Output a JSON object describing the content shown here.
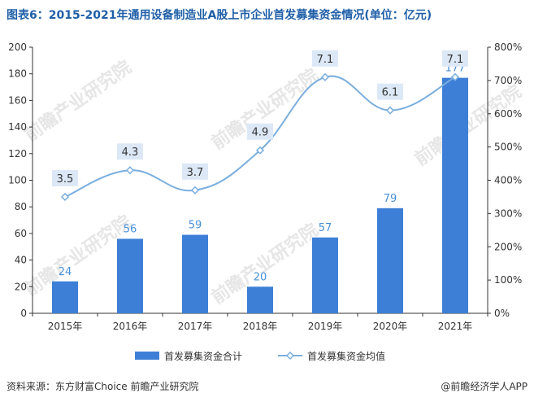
{
  "title": "图表6：2015-2021年通用设备制造业A股上市企业首发募集资金情况(单位：亿元)",
  "source": "资料来源：东方财富Choice 前瞻产业研究院",
  "brand": "@前瞻经济学人APP",
  "watermark": "前瞻产业研究院",
  "colors": {
    "bar": "#3d7fd6",
    "line": "#7aaede",
    "label": "#4a8fd8",
    "title": "#1f5fa8"
  },
  "chart_data": {
    "type": "bar",
    "categories": [
      "2015年",
      "2016年",
      "2017年",
      "2018年",
      "2019年",
      "2020年",
      "2021年"
    ],
    "series": [
      {
        "name": "首发募集资金合计",
        "type": "bar",
        "axis": "left",
        "values": [
          24,
          56,
          59,
          20,
          57,
          79,
          177
        ]
      },
      {
        "name": "首发募集资金均值",
        "type": "line",
        "axis": "right",
        "values": [
          3.5,
          4.3,
          3.7,
          4.9,
          7.1,
          6.1,
          7.1
        ]
      }
    ],
    "y_left": {
      "min": 0,
      "max": 200,
      "ticks": [
        0,
        20,
        40,
        60,
        80,
        100,
        120,
        140,
        160,
        180,
        200
      ]
    },
    "y_right": {
      "min": 0,
      "max": 8,
      "ticks": [
        "0%",
        "100%",
        "200%",
        "300%",
        "400%",
        "500%",
        "600%",
        "700%",
        "800%"
      ]
    },
    "legend": "bottom"
  }
}
